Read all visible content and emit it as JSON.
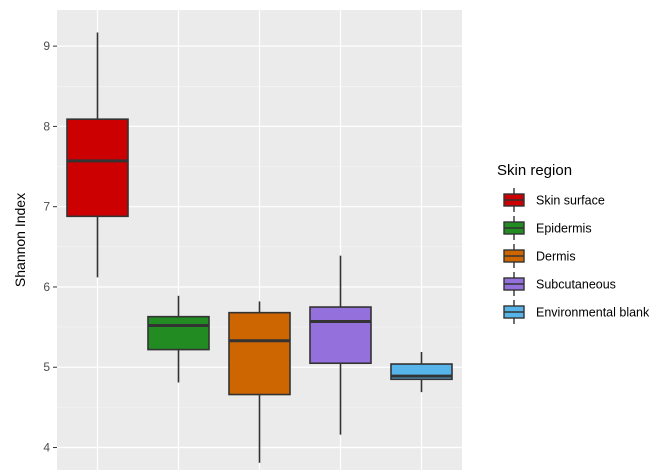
{
  "chart_data": {
    "type": "box",
    "title": "",
    "xlabel": "",
    "ylabel": "Shannon Index",
    "ylim": [
      3.72,
      9.45
    ],
    "y_ticks": [
      4,
      5,
      6,
      7,
      8,
      9
    ],
    "grid": true,
    "legend": {
      "title": "Skin region",
      "placement": "right"
    },
    "series": [
      {
        "name": "Skin surface",
        "color": "#cc0000",
        "min": 6.12,
        "q1": 6.88,
        "median": 7.57,
        "q3": 8.09,
        "max": 9.17
      },
      {
        "name": "Epidermis",
        "color": "#228b22",
        "min": 4.81,
        "q1": 5.22,
        "median": 5.52,
        "q3": 5.63,
        "max": 5.89
      },
      {
        "name": "Dermis",
        "color": "#cd6600",
        "min": 3.81,
        "q1": 4.66,
        "median": 5.33,
        "q3": 5.68,
        "max": 5.82
      },
      {
        "name": "Subcutaneous",
        "color": "#9370db",
        "min": 4.16,
        "q1": 5.05,
        "median": 5.57,
        "q3": 5.75,
        "max": 6.39
      },
      {
        "name": "Environmental blank",
        "color": "#56b4e9",
        "min": 4.69,
        "q1": 4.85,
        "median": 4.89,
        "q3": 5.04,
        "max": 5.19
      }
    ]
  }
}
